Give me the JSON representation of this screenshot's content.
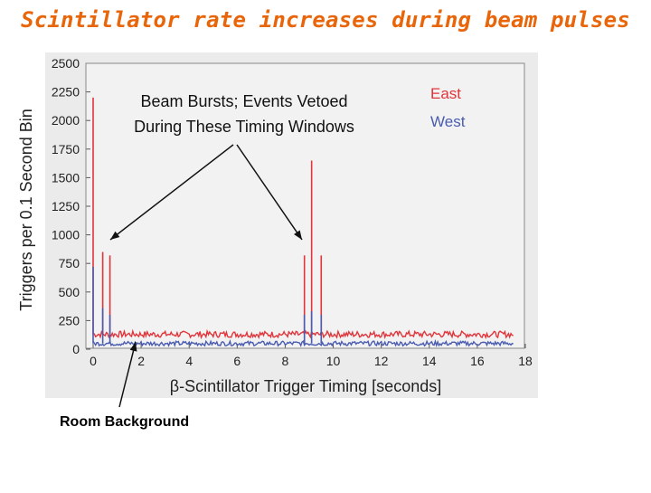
{
  "slide": {
    "title": "Scintillator rate increases during beam pulses"
  },
  "footnote": "Room Background",
  "colors": {
    "title": "#e8650a",
    "east": "#e0353b",
    "west": "#4a5cb0",
    "plot_bg": "#f0f0f0",
    "panel_bg": "#ebebeb"
  },
  "chart_data": {
    "type": "line",
    "ylabel": "Triggers per 0.1 Second Bin",
    "xlabel": "β-Scintillator Trigger Timing  [seconds]",
    "xlim": [
      0,
      18
    ],
    "ylim": [
      0,
      2500
    ],
    "x_ticks": [
      0,
      2,
      4,
      6,
      8,
      10,
      12,
      14,
      16,
      18
    ],
    "y_ticks": [
      0,
      250,
      500,
      750,
      1000,
      1250,
      1500,
      1750,
      2000,
      2250,
      2500
    ],
    "grid": false,
    "legend_placement": "top-right",
    "annotation": "Beam Bursts; Events Vetoed During These Timing Windows",
    "annotation_lines": [
      "Beam Bursts; Events Vetoed",
      "During These Timing Windows"
    ],
    "series": [
      {
        "name": "East",
        "color": "#e0353b",
        "baseline": 130,
        "spikes": [
          {
            "x": 0.0,
            "y": 2200
          },
          {
            "x": 0.4,
            "y": 850
          },
          {
            "x": 0.7,
            "y": 820
          },
          {
            "x": 8.8,
            "y": 820
          },
          {
            "x": 9.1,
            "y": 1650
          },
          {
            "x": 9.5,
            "y": 820
          }
        ]
      },
      {
        "name": "West",
        "color": "#4a5cb0",
        "baseline": 50,
        "spikes": [
          {
            "x": 0.0,
            "y": 720
          },
          {
            "x": 0.4,
            "y": 360
          },
          {
            "x": 0.7,
            "y": 300
          },
          {
            "x": 8.8,
            "y": 300
          },
          {
            "x": 9.1,
            "y": 330
          },
          {
            "x": 9.5,
            "y": 300
          }
        ]
      }
    ]
  }
}
